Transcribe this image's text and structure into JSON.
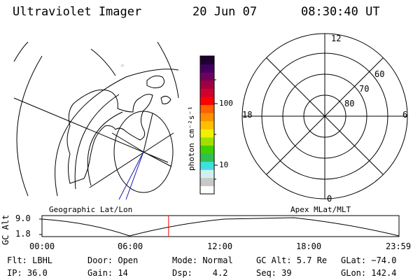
{
  "header": {
    "title": "Ultraviolet Imager",
    "date": "20 Jun 07",
    "time": "08:30:40 UT"
  },
  "map_panel": {
    "caption": "Geographic Lat/Lon",
    "coastline_color": "#000000",
    "track_color": "#1b1bb0"
  },
  "colorbar": {
    "units": "photon cm⁻²s⁻¹",
    "tick_labels": [
      "100",
      "10"
    ],
    "scale": "log",
    "colors": [
      "#ffffff",
      "#c8c8c8",
      "#d0f0f0",
      "#40e0e0",
      "#30c050",
      "#40d000",
      "#a0e000",
      "#f0f000",
      "#ffc000",
      "#ff9000",
      "#ff6000",
      "#ff0000",
      "#d00030",
      "#a00040",
      "#700060",
      "#400060",
      "#200030"
    ]
  },
  "polar_panel": {
    "caption": "Apex MLat/MLT",
    "mlt_labels": [
      "12",
      "18",
      "6",
      "0"
    ],
    "mlat_labels": [
      "60",
      "70",
      "80"
    ]
  },
  "altitude_plot": {
    "ylabel": "GC Alt",
    "y_ticks": [
      "9.0",
      "1.8"
    ],
    "x_ticks": [
      "00:00",
      "06:00",
      "12:00",
      "18:00",
      "23:59"
    ],
    "current_time_color": "#ff0000",
    "current_time_hours": 8.51
  },
  "status": {
    "filter": "Flt: LBHL",
    "ip": "IP: 36.0",
    "door": "Door: Open",
    "gain": "Gain: 14",
    "mode": "Mode: Normal",
    "dsp": "Dsp:    4.2",
    "gc_alt": "GC Alt: 5.7 Re",
    "seq": "Seq: 39",
    "glat": "GLat: −74.0",
    "glon": "GLon: 142.4"
  }
}
